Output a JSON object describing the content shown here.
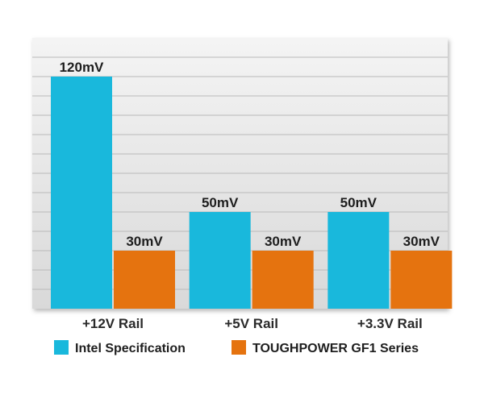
{
  "chart_data": {
    "type": "bar",
    "title": "",
    "xlabel": "",
    "ylabel": "",
    "ylim": [
      0,
      140
    ],
    "grid": true,
    "legend_position": "bottom",
    "categories": [
      "+12V Rail",
      "+5V Rail",
      "+3.3V Rail"
    ],
    "series": [
      {
        "name": "Intel Specification",
        "color": "#19b8dc",
        "values": [
          120,
          50,
          50
        ],
        "labels": [
          "120mV",
          "50mV",
          "50mV"
        ]
      },
      {
        "name": "TOUGHPOWER GF1 Series",
        "color": "#e5730f",
        "values": [
          30,
          30,
          30
        ],
        "labels": [
          "30mV",
          "30mV",
          "30mV"
        ]
      }
    ]
  }
}
